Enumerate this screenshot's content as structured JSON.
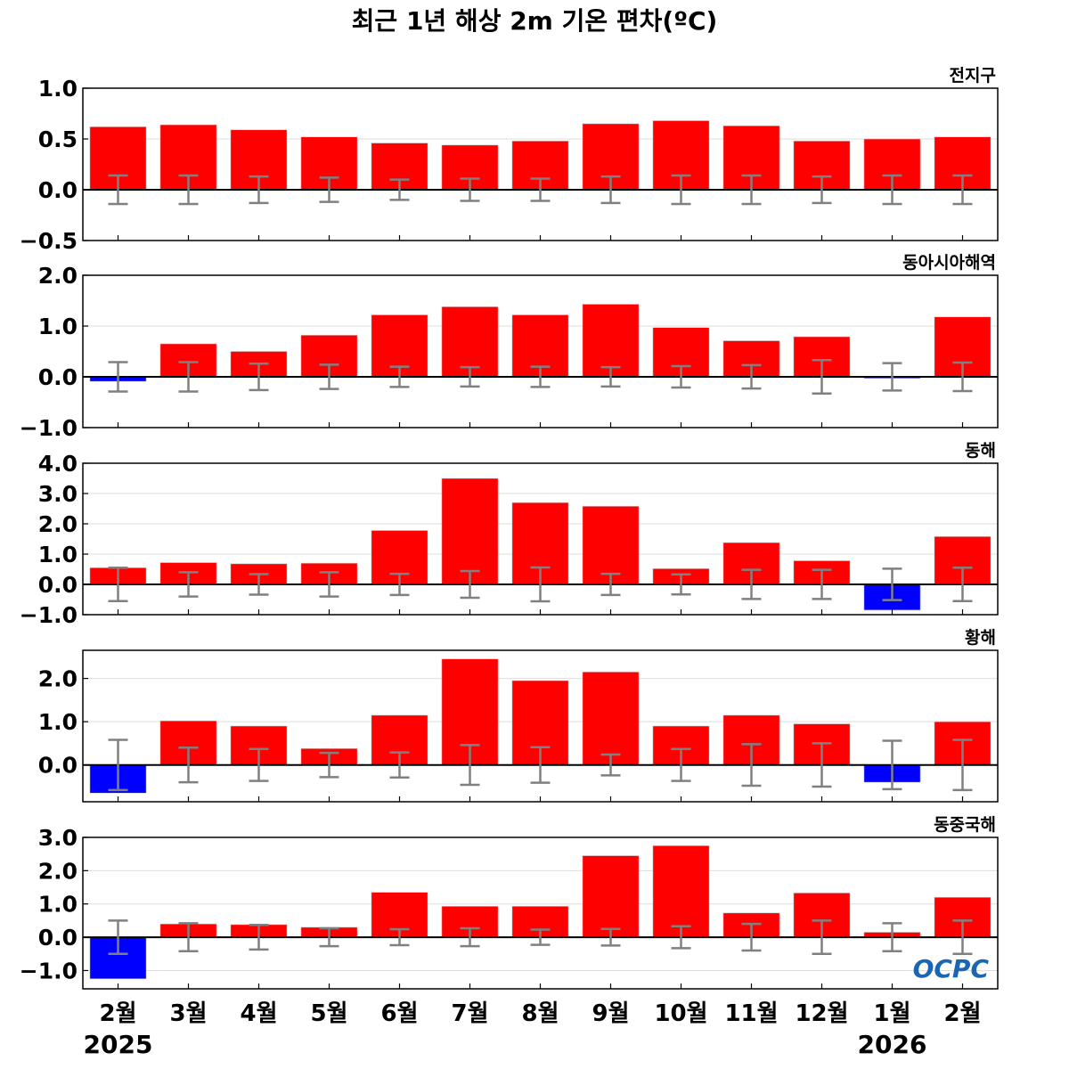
{
  "title": "최근 1년 해상 2m 기온 편차(ºC)",
  "logo_text": "OCPC",
  "colors": {
    "positive": "#ff0000",
    "negative": "#0000ff",
    "errorbar": "#808080",
    "zero_line": "#000000",
    "grid": "#dddddd"
  },
  "chart_data": [
    {
      "type": "bar",
      "panel_label": "전지구",
      "categories": [
        "2월",
        "3월",
        "4월",
        "5월",
        "6월",
        "7월",
        "8월",
        "9월",
        "10월",
        "11월",
        "12월",
        "1월",
        "2월"
      ],
      "values": [
        0.62,
        0.64,
        0.59,
        0.52,
        0.46,
        0.44,
        0.48,
        0.65,
        0.68,
        0.63,
        0.48,
        0.5,
        0.52
      ],
      "error": [
        0.14,
        0.14,
        0.13,
        0.12,
        0.1,
        0.11,
        0.11,
        0.13,
        0.14,
        0.14,
        0.13,
        0.14,
        0.14
      ],
      "ylim": [
        -0.5,
        1.0
      ],
      "yticks": [
        -0.5,
        0.0,
        0.5,
        1.0
      ],
      "ytick_labels": [
        "−0.5",
        "0.0",
        "0.5",
        "1.0"
      ],
      "grid": true
    },
    {
      "type": "bar",
      "panel_label": "동아시아해역",
      "categories": [
        "2월",
        "3월",
        "4월",
        "5월",
        "6월",
        "7월",
        "8월",
        "9월",
        "10월",
        "11월",
        "12월",
        "1월",
        "2월"
      ],
      "values": [
        -0.09,
        0.65,
        0.5,
        0.82,
        1.22,
        1.38,
        1.22,
        1.43,
        0.97,
        0.71,
        0.79,
        -0.03,
        1.18
      ],
      "error": [
        0.29,
        0.29,
        0.26,
        0.24,
        0.2,
        0.19,
        0.2,
        0.19,
        0.21,
        0.23,
        0.33,
        0.27,
        0.28
      ],
      "ylim": [
        -1.0,
        2.0
      ],
      "yticks": [
        -1.0,
        0.0,
        1.0,
        2.0
      ],
      "ytick_labels": [
        "−1.0",
        "0.0",
        "1.0",
        "2.0"
      ],
      "grid": true
    },
    {
      "type": "bar",
      "panel_label": "동해",
      "categories": [
        "2월",
        "3월",
        "4월",
        "5월",
        "6월",
        "7월",
        "8월",
        "9월",
        "10월",
        "11월",
        "12월",
        "1월",
        "2월"
      ],
      "values": [
        0.55,
        0.72,
        0.68,
        0.7,
        1.78,
        3.5,
        2.7,
        2.58,
        0.52,
        1.38,
        0.78,
        -0.85,
        1.58
      ],
      "error": [
        0.55,
        0.4,
        0.34,
        0.4,
        0.35,
        0.44,
        0.56,
        0.35,
        0.33,
        0.48,
        0.48,
        0.52,
        0.55
      ],
      "ylim": [
        -1.0,
        4.0
      ],
      "yticks": [
        -1.0,
        0.0,
        1.0,
        2.0,
        3.0,
        4.0
      ],
      "ytick_labels": [
        "−1.0",
        "0.0",
        "1.0",
        "2.0",
        "3.0",
        "4.0"
      ],
      "grid": true
    },
    {
      "type": "bar",
      "panel_label": "황해",
      "categories": [
        "2월",
        "3월",
        "4월",
        "5월",
        "6월",
        "7월",
        "8월",
        "9월",
        "10월",
        "11월",
        "12월",
        "1월",
        "2월"
      ],
      "values": [
        -0.65,
        1.02,
        0.9,
        0.38,
        1.15,
        2.45,
        1.95,
        2.15,
        0.9,
        1.15,
        0.95,
        -0.4,
        1.0
      ],
      "error": [
        0.58,
        0.4,
        0.37,
        0.28,
        0.29,
        0.46,
        0.41,
        0.24,
        0.37,
        0.48,
        0.5,
        0.56,
        0.58
      ],
      "ylim": [
        -0.85,
        2.65
      ],
      "yticks": [
        0.0,
        1.0,
        2.0
      ],
      "ytick_labels": [
        "0.0",
        "1.0",
        "2.0"
      ],
      "grid": true
    },
    {
      "type": "bar",
      "panel_label": "동중국해",
      "categories": [
        "2월",
        "3월",
        "4월",
        "5월",
        "6월",
        "7월",
        "8월",
        "9월",
        "10월",
        "11월",
        "12월",
        "1월",
        "2월"
      ],
      "values": [
        -1.25,
        0.4,
        0.38,
        0.3,
        1.35,
        0.93,
        0.93,
        2.45,
        2.75,
        0.73,
        1.33,
        0.15,
        1.2
      ],
      "error": [
        0.5,
        0.42,
        0.37,
        0.27,
        0.24,
        0.27,
        0.23,
        0.25,
        0.33,
        0.4,
        0.5,
        0.42,
        0.5
      ],
      "ylim": [
        -1.55,
        3.0
      ],
      "yticks": [
        -1.0,
        0.0,
        1.0,
        2.0,
        3.0
      ],
      "ytick_labels": [
        "−1.0",
        "0.0",
        "1.0",
        "2.0",
        "3.0"
      ],
      "grid": true
    }
  ],
  "x_axis": {
    "month_labels": [
      "2월",
      "3월",
      "4월",
      "5월",
      "6월",
      "7월",
      "8월",
      "9월",
      "10월",
      "11월",
      "12월",
      "1월",
      "2월"
    ],
    "year_labels": [
      {
        "text": "2025",
        "index": 0
      },
      {
        "text": "2026",
        "index": 11
      }
    ]
  }
}
